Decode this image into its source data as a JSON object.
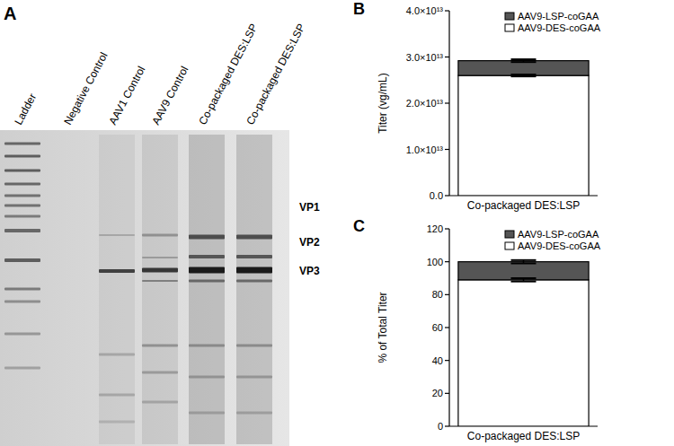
{
  "gel": {
    "title": "A",
    "lanes": [
      "Ladder",
      "Negative Control",
      "AAV1 Control",
      "AAV9 Control",
      "Co-packaged DES:LSP",
      "Co-packaged DES:LSP"
    ],
    "bands": [
      "VP1",
      "VP2",
      "VP3"
    ]
  },
  "chart_data": [
    {
      "type": "bar",
      "title": "B",
      "stacked": true,
      "legend": "top",
      "categories": [
        "Co-packaged DES:LSP"
      ],
      "y_label": "Titer (vg/mL)",
      "series": [
        {
          "name": "AAV9-DES-coGAA",
          "color": "#ffffff",
          "values": [
            26000000000000
          ],
          "errors": [
            200000000000
          ]
        },
        {
          "name": "AAV9-LSP-coGAA",
          "color": "#555555",
          "values": [
            3200000000000
          ],
          "errors": [
            300000000000
          ]
        }
      ],
      "ylim": [
        0,
        40000000000000
      ],
      "yticks": [
        {
          "value": 0,
          "label": "0.0"
        },
        {
          "value": 10000000000000,
          "label": "1.0×10¹³"
        },
        {
          "value": 20000000000000,
          "label": "2.0×10¹³"
        },
        {
          "value": 30000000000000,
          "label": "3.0×10¹³"
        },
        {
          "value": 40000000000000,
          "label": "4.0×10¹³"
        }
      ]
    },
    {
      "type": "bar",
      "title": "C",
      "stacked": true,
      "legend": "top",
      "categories": [
        "Co-packaged DES:LSP"
      ],
      "y_label": "% of Total Titer",
      "series": [
        {
          "name": "AAV9-DES-coGAA",
          "color": "#ffffff",
          "values": [
            89
          ],
          "errors": [
            1
          ]
        },
        {
          "name": "AAV9-LSP-coGAA",
          "color": "#555555",
          "values": [
            11
          ],
          "errors": [
            1
          ]
        }
      ],
      "ylim": [
        0,
        120
      ],
      "yticks": [
        0,
        20,
        40,
        60,
        80,
        100,
        120
      ]
    }
  ]
}
